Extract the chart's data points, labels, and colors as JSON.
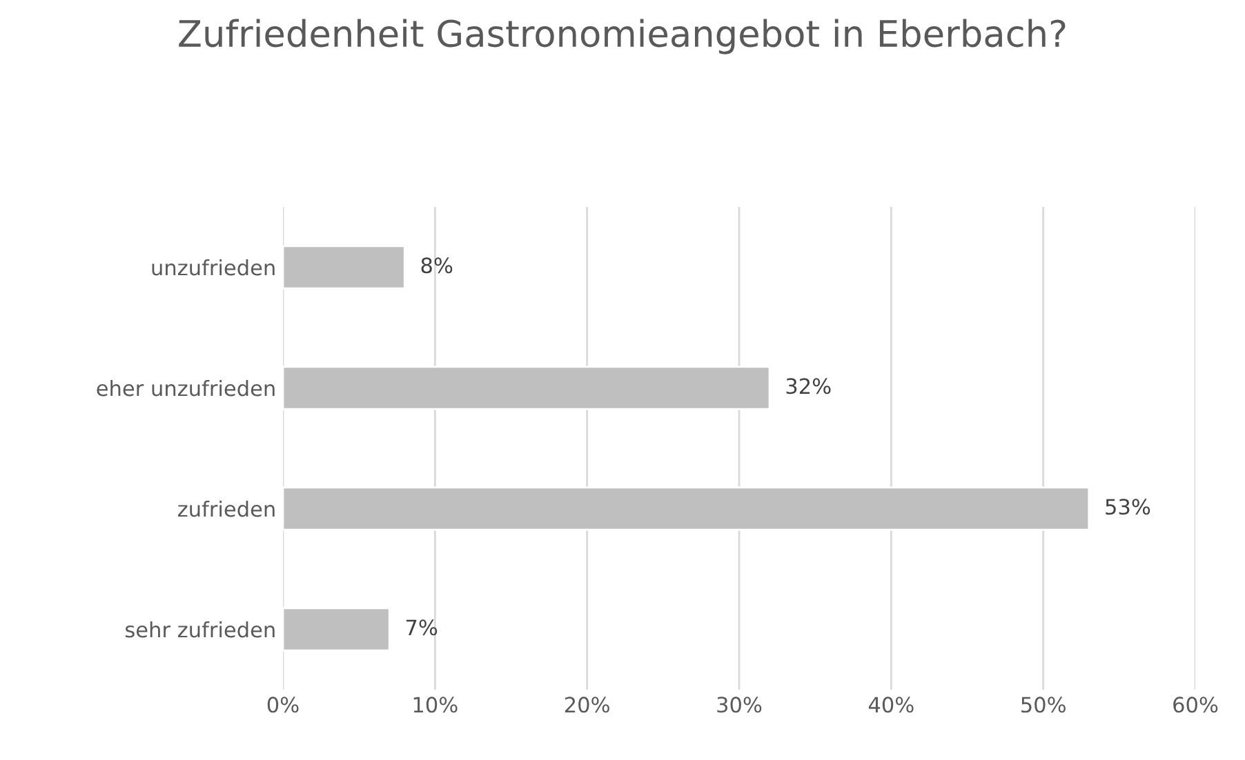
{
  "chart_data": {
    "type": "bar",
    "orientation": "horizontal",
    "title": "Zufriedenheit Gastronomieangebot in Eberbach?",
    "categories": [
      "unzufrieden",
      "eher unzufrieden",
      "zufrieden",
      "sehr zufrieden"
    ],
    "values": [
      8,
      32,
      53,
      7
    ],
    "value_labels": [
      "8%",
      "32%",
      "53%",
      "7%"
    ],
    "color": "#bfbfbf",
    "xlim": [
      0,
      60
    ],
    "xticks": [
      {
        "value": 0,
        "label": "0%"
      },
      {
        "value": 10,
        "label": "10%"
      },
      {
        "value": 20,
        "label": "20%"
      },
      {
        "value": 30,
        "label": "30%"
      },
      {
        "value": 40,
        "label": "40%"
      },
      {
        "value": 50,
        "label": "50%"
      },
      {
        "value": 60,
        "label": "60%"
      }
    ],
    "grid": "x",
    "legend": false
  }
}
